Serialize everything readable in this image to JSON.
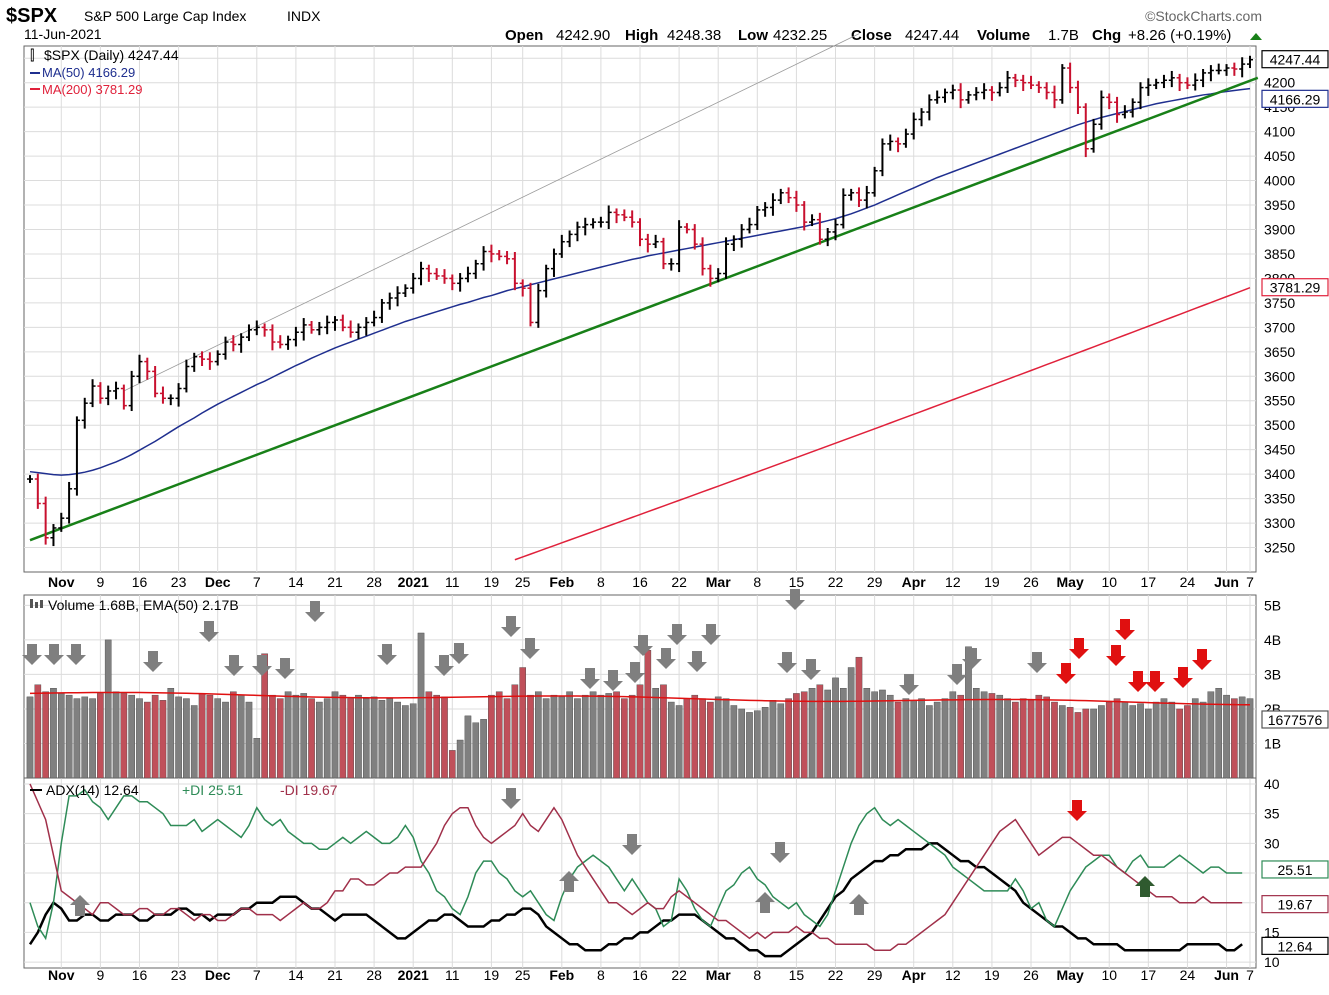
{
  "header": {
    "symbol": "$SPX",
    "name": "S&P 500 Large Cap Index",
    "exchange": "INDX",
    "date": "11-Jun-2021",
    "brand": "©StockCharts.com",
    "open_label": "Open",
    "open": "4242.90",
    "high_label": "High",
    "high": "4248.38",
    "low_label": "Low",
    "low": "4232.25",
    "close_label": "Close",
    "close": "4247.44",
    "volume_label": "Volume",
    "volume": "1.7B",
    "chg_label": "Chg",
    "chg": "+8.26 (+0.19%)"
  },
  "legend": {
    "price": "$SPX (Daily) 4247.44",
    "ma50": "MA(50) 4166.29",
    "ma200": "MA(200) 3781.29",
    "volume": "Volume 1.68B, EMA(50) 2.17B",
    "adx_a": "ADX(14) 12.64",
    "adx_b": "+DI 25.51",
    "adx_c": "-DI 19.67"
  },
  "colors": {
    "up": "#000000",
    "down": "#c8102e",
    "ma50": "#1f2f8f",
    "ma200": "#e0213b",
    "trend": "#188018",
    "vol_up": "#808080",
    "vol_down": "#c0505a",
    "adx": "#000000",
    "pdi": "#2e8b57",
    "mdi": "#a0304a",
    "grid": "#dcdcdc",
    "arrow_gray": "#7f7f7f",
    "arrow_red": "#e01010",
    "arrow_green": "#2f5a2f"
  },
  "chart_data": [
    {
      "type": "line",
      "title": "$SPX (Daily) 4247.44",
      "x_labels": [
        "Nov",
        "9",
        "16",
        "23",
        "Dec",
        "7",
        "14",
        "21",
        "28",
        "2021",
        "11",
        "19",
        "25",
        "Feb",
        "8",
        "16",
        "22",
        "Mar",
        "8",
        "15",
        "22",
        "29",
        "Apr",
        "12",
        "19",
        "26",
        "May",
        "10",
        "17",
        "24",
        "Jun",
        "7"
      ],
      "y_ticks": [
        3250,
        3300,
        3350,
        3400,
        3450,
        3500,
        3550,
        3600,
        3650,
        3700,
        3750,
        3800,
        3850,
        3900,
        3950,
        4000,
        4050,
        4100,
        4150,
        4200,
        4250
      ],
      "ylim": [
        3200,
        4275
      ],
      "price_close": [
        3390,
        3340,
        3270,
        3290,
        3310,
        3370,
        3510,
        3545,
        3580,
        3555,
        3570,
        3575,
        3540,
        3600,
        3630,
        3610,
        3565,
        3555,
        3555,
        3575,
        3620,
        3640,
        3635,
        3630,
        3645,
        3670,
        3665,
        3680,
        3695,
        3700,
        3695,
        3670,
        3665,
        3675,
        3690,
        3705,
        3695,
        3700,
        3710,
        3715,
        3700,
        3690,
        3700,
        3710,
        3720,
        3750,
        3760,
        3770,
        3780,
        3800,
        3820,
        3810,
        3805,
        3800,
        3790,
        3800,
        3810,
        3830,
        3855,
        3850,
        3845,
        3840,
        3790,
        3780,
        3710,
        3775,
        3820,
        3850,
        3875,
        3890,
        3905,
        3910,
        3915,
        3915,
        3935,
        3930,
        3925,
        3915,
        3880,
        3870,
        3875,
        3830,
        3830,
        3905,
        3900,
        3870,
        3820,
        3800,
        3810,
        3870,
        3880,
        3900,
        3910,
        3940,
        3945,
        3960,
        3975,
        3965,
        3950,
        3915,
        3920,
        3880,
        3895,
        3910,
        3970,
        3975,
        3960,
        3975,
        4020,
        4075,
        4080,
        4075,
        4095,
        4125,
        4140,
        4165,
        4170,
        4180,
        4185,
        4165,
        4175,
        4180,
        4185,
        4180,
        4190,
        4210,
        4205,
        4200,
        4195,
        4190,
        4180,
        4165,
        4230,
        4190,
        4150,
        4065,
        4115,
        4170,
        4160,
        4135,
        4140,
        4160,
        4190,
        4195,
        4200,
        4205,
        4210,
        4200,
        4195,
        4205,
        4220,
        4225,
        4225,
        4230,
        4228,
        4238,
        4247
      ],
      "ma50": [
        3405,
        3403,
        3401,
        3399,
        3398,
        3399,
        3401,
        3404,
        3408,
        3413,
        3419,
        3425,
        3432,
        3440,
        3449,
        3458,
        3467,
        3477,
        3487,
        3497,
        3506,
        3515,
        3525,
        3534,
        3543,
        3551,
        3559,
        3567,
        3575,
        3583,
        3590,
        3598,
        3606,
        3614,
        3622,
        3629,
        3637,
        3644,
        3651,
        3658,
        3664,
        3670,
        3676,
        3682,
        3688,
        3694,
        3700,
        3706,
        3712,
        3717,
        3722,
        3727,
        3732,
        3737,
        3742,
        3747,
        3751,
        3756,
        3761,
        3765,
        3770,
        3775,
        3779,
        3783,
        3787,
        3791,
        3795,
        3799,
        3803,
        3807,
        3811,
        3815,
        3819,
        3823,
        3827,
        3831,
        3835,
        3839,
        3842,
        3846,
        3849,
        3852,
        3855,
        3858,
        3861,
        3864,
        3867,
        3870,
        3873,
        3876,
        3879,
        3882,
        3885,
        3888,
        3891,
        3894,
        3897,
        3900,
        3903,
        3906,
        3910,
        3914,
        3918,
        3922,
        3927,
        3932,
        3938,
        3944,
        3950,
        3957,
        3964,
        3971,
        3978,
        3985,
        3992,
        3999,
        4006,
        4012,
        4018,
        4024,
        4030,
        4036,
        4042,
        4048,
        4054,
        4060,
        4066,
        4072,
        4078,
        4084,
        4090,
        4096,
        4102,
        4108,
        4114,
        4119,
        4124,
        4129,
        4133,
        4137,
        4141,
        4145,
        4149,
        4153,
        4157,
        4160,
        4163,
        4166,
        4169,
        4172,
        4175,
        4177,
        4180,
        4182,
        4184,
        4186,
        4188
      ],
      "ma200_start": 3225,
      "ma200_end": 3781,
      "trendline_points": [
        [
          0,
          3265
        ],
        [
          157,
          4210
        ]
      ],
      "channel_points": [
        [
          12,
          3570
        ],
        [
          106,
          4300
        ]
      ],
      "right_labels": [
        "4247.44",
        "4166.29",
        "3781.29"
      ]
    },
    {
      "type": "bar",
      "title": "Volume 1.68B, EMA(50) 2.17B",
      "y_ticks": [
        "1B",
        "2B",
        "3B",
        "4B",
        "5B"
      ],
      "ylim": [
        0,
        5.3
      ],
      "right_label": "1677576",
      "values": [
        2.35,
        2.7,
        2.5,
        2.6,
        2.45,
        2.4,
        2.3,
        2.35,
        2.3,
        2.45,
        4.0,
        2.5,
        2.45,
        2.4,
        2.3,
        2.2,
        2.4,
        2.25,
        2.6,
        2.35,
        2.3,
        2.1,
        2.45,
        2.4,
        2.3,
        2.2,
        2.5,
        2.4,
        2.2,
        1.15,
        3.6,
        2.4,
        2.3,
        2.5,
        2.4,
        2.45,
        2.3,
        2.2,
        2.3,
        2.5,
        2.4,
        2.3,
        2.4,
        2.3,
        2.35,
        2.25,
        2.3,
        2.2,
        2.1,
        2.15,
        4.2,
        2.5,
        2.4,
        2.35,
        0.8,
        1.1,
        1.8,
        1.6,
        1.7,
        2.4,
        2.5,
        2.3,
        2.7,
        3.2,
        2.4,
        2.5,
        2.3,
        2.4,
        2.35,
        2.5,
        2.3,
        2.4,
        2.5,
        2.4,
        2.45,
        2.5,
        2.3,
        2.4,
        2.7,
        3.7,
        2.6,
        2.7,
        2.2,
        2.1,
        2.3,
        2.4,
        2.3,
        2.2,
        2.35,
        2.3,
        2.1,
        2.0,
        1.9,
        1.95,
        2.05,
        2.25,
        2.15,
        2.3,
        2.45,
        2.5,
        2.6,
        2.7,
        2.55,
        2.9,
        2.6,
        3.2,
        3.5,
        2.6,
        2.5,
        2.55,
        2.4,
        2.2,
        2.3,
        2.25,
        2.3,
        2.1,
        2.2,
        2.3,
        2.5,
        2.4,
        3.8,
        2.6,
        2.5,
        2.45,
        2.4,
        2.3,
        2.2,
        2.3,
        2.25,
        2.4,
        2.35,
        2.2,
        2.1,
        2.05,
        1.9,
        2.0,
        2.0,
        2.1,
        2.2,
        2.3,
        2.2,
        2.1,
        2.15,
        2.0,
        2.2,
        2.3,
        2.2,
        2.0,
        2.1,
        2.3,
        2.2,
        2.5,
        2.6,
        2.4,
        2.3,
        2.35,
        2.3,
        2.25,
        2.3,
        2.4,
        2.3,
        2.2,
        2.5,
        2.4,
        2.25,
        2.3,
        2.2,
        2.4,
        2.3,
        2.2,
        2.1,
        2.2,
        2.1
      ],
      "ema50_start": 2.45,
      "ema50_end": 2.17
    },
    {
      "type": "line",
      "title": "ADX(14) 12.64 +DI 25.51 -DI 19.67",
      "y_ticks": [
        10,
        15,
        20,
        25,
        30,
        35,
        40
      ],
      "ylim": [
        9,
        41
      ],
      "series": [
        {
          "name": "ADX(14)",
          "values": [
            13,
            15,
            18,
            20,
            19,
            17,
            17,
            18,
            18,
            17,
            17,
            18,
            18,
            18,
            17,
            17,
            18,
            18,
            18,
            19,
            19,
            18,
            18,
            17,
            18,
            18,
            18,
            19,
            19,
            20,
            20,
            20,
            21,
            21,
            21,
            20,
            19,
            19,
            18,
            17,
            18,
            18,
            18,
            18,
            17,
            16,
            15,
            14,
            14,
            15,
            16,
            17,
            17,
            18,
            18,
            17,
            16,
            16,
            16,
            17,
            17,
            18,
            18,
            19,
            19,
            18,
            16,
            15,
            14,
            13,
            13,
            12,
            12,
            12,
            13,
            13,
            14,
            14,
            15,
            15,
            16,
            17,
            17,
            18,
            18,
            18,
            17,
            16,
            15,
            14,
            14,
            13,
            12,
            12,
            11,
            11,
            11,
            12,
            13,
            14,
            15,
            17,
            19,
            21,
            22,
            24,
            25,
            26,
            27,
            27,
            28,
            28,
            29,
            29,
            29,
            30,
            30,
            29,
            28,
            27,
            27,
            26,
            26,
            25,
            24,
            23,
            22,
            20,
            19,
            18,
            17,
            16,
            16,
            15,
            14,
            14,
            13,
            13,
            13,
            13,
            12,
            12,
            12,
            12,
            12,
            12,
            12,
            12,
            13,
            13,
            13,
            13,
            13,
            12,
            12,
            13
          ]
        },
        {
          "name": "+DI",
          "values": [
            20,
            16,
            14,
            20,
            30,
            38,
            38,
            39,
            37,
            36,
            34,
            36,
            38,
            38,
            37,
            37,
            36,
            35,
            33,
            33,
            33,
            34,
            32,
            33,
            34,
            33,
            32,
            31,
            33,
            36,
            34,
            33,
            34,
            32,
            31,
            30,
            30,
            29,
            29,
            30,
            31,
            30,
            31,
            32,
            31,
            30,
            30,
            31,
            33,
            31,
            27,
            25,
            22,
            21,
            19,
            18,
            21,
            25,
            27,
            27,
            25,
            24,
            22,
            21,
            22,
            20,
            18,
            17,
            21,
            24,
            26,
            27,
            28,
            27,
            26,
            24,
            22,
            24,
            22,
            20,
            19,
            16,
            17,
            24,
            22,
            19,
            17,
            16,
            19,
            22,
            23,
            25,
            26,
            24,
            23,
            21,
            20,
            19,
            20,
            18,
            17,
            16,
            18,
            22,
            26,
            30,
            33,
            35,
            36,
            34,
            33,
            34,
            33,
            32,
            31,
            30,
            29,
            28,
            26,
            25,
            24,
            23,
            22,
            22,
            22,
            22,
            24,
            22,
            19,
            20,
            17,
            16,
            19,
            22,
            24,
            26,
            27,
            28,
            28,
            26,
            25,
            27,
            28,
            26,
            26,
            26,
            27,
            28,
            27,
            26,
            25,
            26,
            26,
            25,
            25,
            25
          ]
        },
        {
          "name": "-DI",
          "values": [
            40,
            37,
            34,
            28,
            22,
            21,
            20,
            19,
            18,
            20,
            20,
            19,
            18,
            18,
            19,
            19,
            18,
            18,
            19,
            19,
            18,
            17,
            18,
            18,
            17,
            17,
            18,
            19,
            19,
            18,
            18,
            18,
            17,
            18,
            19,
            20,
            19,
            19,
            20,
            22,
            22,
            24,
            24,
            23,
            23,
            24,
            25,
            25,
            26,
            26,
            26,
            28,
            30,
            33,
            35,
            36,
            36,
            33,
            31,
            30,
            31,
            32,
            33,
            35,
            33,
            32,
            34,
            36,
            34,
            31,
            28,
            26,
            24,
            22,
            20,
            20,
            19,
            18,
            19,
            20,
            19,
            19,
            21,
            22,
            21,
            20,
            19,
            18,
            17,
            17,
            16,
            15,
            14,
            15,
            14,
            15,
            15,
            15,
            16,
            15,
            15,
            14,
            14,
            13,
            13,
            13,
            13,
            13,
            12,
            12,
            12,
            13,
            13,
            14,
            15,
            16,
            17,
            18,
            20,
            22,
            24,
            26,
            28,
            30,
            32,
            33,
            34,
            32,
            30,
            28,
            29,
            30,
            31,
            31,
            30,
            29,
            28,
            28,
            27,
            26,
            25,
            24,
            23,
            22,
            21,
            21,
            21,
            20,
            20,
            20,
            21,
            20,
            20,
            20,
            20,
            20
          ]
        }
      ],
      "right_labels": [
        "25.51",
        "19.67",
        "12.64"
      ]
    }
  ]
}
